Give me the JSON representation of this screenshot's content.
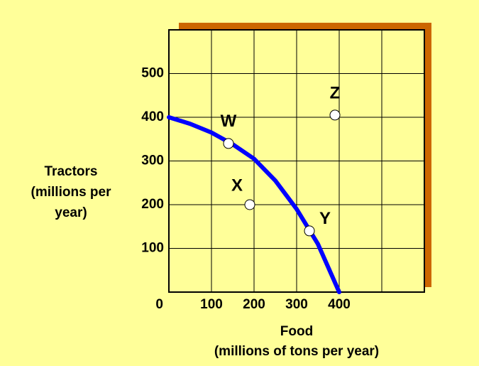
{
  "chart_data": {
    "type": "line",
    "x_label": [
      "Food",
      "(millions of tons per year)"
    ],
    "y_label": [
      "Tractors",
      "(millions per",
      "year)"
    ],
    "xlim": [
      0,
      600
    ],
    "ylim": [
      0,
      600
    ],
    "xticks": [
      0,
      100,
      200,
      300,
      400
    ],
    "yticks": [
      100,
      200,
      300,
      400,
      500
    ],
    "grid": true,
    "series": [
      {
        "color": "#0000ff",
        "x": [
          0,
          50,
          100,
          150,
          200,
          250,
          300,
          350,
          400
        ],
        "values": [
          400,
          385,
          365,
          338,
          305,
          255,
          190,
          110,
          0
        ]
      }
    ],
    "points": {
      "labels": [
        "W",
        "X",
        "Y",
        "Z"
      ],
      "x": [
        140,
        190,
        330,
        390
      ],
      "y": [
        340,
        200,
        140,
        405
      ],
      "color": "#ffffff"
    }
  }
}
